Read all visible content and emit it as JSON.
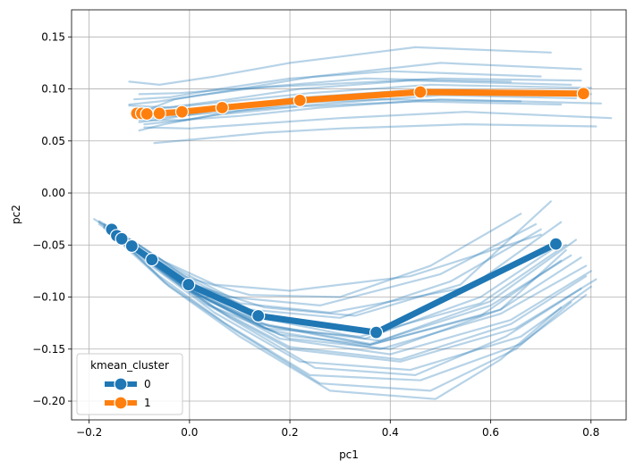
{
  "chart_data": {
    "type": "line",
    "title": "",
    "xlabel": "pc1",
    "ylabel": "pc2",
    "xlim": [
      -0.235,
      0.87
    ],
    "ylim": [
      -0.218,
      0.176
    ],
    "x_ticks": [
      -0.2,
      0.0,
      0.2,
      0.4,
      0.6,
      0.8
    ],
    "x_tick_labels": [
      "−0.2",
      "0.0",
      "0.2",
      "0.4",
      "0.6",
      "0.8"
    ],
    "y_ticks": [
      -0.2,
      -0.15,
      -0.1,
      -0.05,
      0.0,
      0.05,
      0.1,
      0.15
    ],
    "y_tick_labels": [
      "−0.20",
      "−0.15",
      "−0.10",
      "−0.05",
      "0.00",
      "0.05",
      "0.10",
      "0.15"
    ],
    "grid": true,
    "legend": {
      "title": "kmean_cluster",
      "placement": "lower-left",
      "entries": [
        {
          "label": "0",
          "color": "#1f77b4"
        },
        {
          "label": "1",
          "color": "#ff7f0e"
        }
      ]
    },
    "series": [
      {
        "name": "0",
        "role": "cluster mean",
        "color": "#1f77b4",
        "x": [
          -0.155,
          -0.145,
          -0.135,
          -0.115,
          -0.075,
          -0.002,
          0.137,
          0.372,
          0.73
        ],
        "y": [
          -0.035,
          -0.041,
          -0.044,
          -0.051,
          -0.064,
          -0.088,
          -0.118,
          -0.134,
          -0.049
        ]
      },
      {
        "name": "1",
        "role": "cluster mean",
        "color": "#ff7f0e",
        "x": [
          -0.105,
          -0.095,
          -0.085,
          -0.06,
          -0.015,
          0.065,
          0.22,
          0.46,
          0.785
        ],
        "y": [
          0.0765,
          0.0765,
          0.076,
          0.0765,
          0.078,
          0.082,
          0.089,
          0.097,
          0.0955
        ]
      }
    ],
    "background_traces": {
      "cluster_0": [
        {
          "x": [
            -0.19,
            -0.12,
            -0.03,
            0.12,
            0.35,
            0.58,
            0.73
          ],
          "y": [
            -0.025,
            -0.047,
            -0.078,
            -0.118,
            -0.14,
            -0.1,
            -0.052
          ]
        },
        {
          "x": [
            -0.18,
            -0.11,
            -0.02,
            0.14,
            0.36,
            0.6,
            0.76
          ],
          "y": [
            -0.03,
            -0.052,
            -0.086,
            -0.125,
            -0.145,
            -0.108,
            -0.06
          ]
        },
        {
          "x": [
            -0.17,
            -0.1,
            0.0,
            0.16,
            0.38,
            0.62,
            0.79
          ],
          "y": [
            -0.032,
            -0.056,
            -0.092,
            -0.132,
            -0.15,
            -0.116,
            -0.07
          ]
        },
        {
          "x": [
            -0.17,
            -0.09,
            0.02,
            0.18,
            0.4,
            0.64,
            0.8
          ],
          "y": [
            -0.034,
            -0.06,
            -0.098,
            -0.14,
            -0.155,
            -0.122,
            -0.075
          ]
        },
        {
          "x": [
            -0.16,
            -0.08,
            0.03,
            0.2,
            0.42,
            0.65,
            0.81
          ],
          "y": [
            -0.036,
            -0.066,
            -0.106,
            -0.15,
            -0.162,
            -0.13,
            -0.083
          ]
        },
        {
          "x": [
            -0.16,
            -0.07,
            0.05,
            0.22,
            0.44,
            0.66,
            0.8
          ],
          "y": [
            -0.038,
            -0.072,
            -0.115,
            -0.162,
            -0.17,
            -0.138,
            -0.09
          ]
        },
        {
          "x": [
            -0.15,
            -0.06,
            0.07,
            0.24,
            0.46,
            0.66,
            0.79
          ],
          "y": [
            -0.04,
            -0.08,
            -0.125,
            -0.175,
            -0.18,
            -0.145,
            -0.098
          ]
        },
        {
          "x": [
            -0.15,
            -0.05,
            0.09,
            0.26,
            0.48,
            0.65,
            0.76
          ],
          "y": [
            -0.042,
            -0.086,
            -0.132,
            -0.183,
            -0.19,
            -0.15,
            -0.105
          ]
        },
        {
          "x": [
            -0.14,
            -0.04,
            0.1,
            0.28,
            0.49,
            0.62,
            0.74
          ],
          "y": [
            -0.044,
            -0.09,
            -0.138,
            -0.19,
            -0.198,
            -0.16,
            -0.11
          ]
        },
        {
          "x": [
            -0.18,
            -0.1,
            -0.01,
            0.12,
            0.3,
            0.52,
            0.7
          ],
          "y": [
            -0.028,
            -0.05,
            -0.08,
            -0.112,
            -0.12,
            -0.085,
            -0.035
          ]
        },
        {
          "x": [
            -0.17,
            -0.11,
            -0.03,
            0.08,
            0.26,
            0.5,
            0.69
          ],
          "y": [
            -0.03,
            -0.048,
            -0.072,
            -0.1,
            -0.108,
            -0.078,
            -0.03
          ]
        },
        {
          "x": [
            -0.16,
            -0.09,
            0.0,
            0.12,
            0.3,
            0.48,
            0.66
          ],
          "y": [
            -0.033,
            -0.058,
            -0.082,
            -0.098,
            -0.1,
            -0.07,
            -0.02
          ]
        },
        {
          "x": [
            -0.15,
            -0.08,
            0.02,
            0.15,
            0.33,
            0.54,
            0.72
          ],
          "y": [
            -0.036,
            -0.062,
            -0.09,
            -0.11,
            -0.118,
            -0.088,
            -0.008
          ]
        },
        {
          "x": [
            -0.18,
            -0.12,
            -0.05,
            0.05,
            0.2,
            0.44,
            0.7
          ],
          "y": [
            -0.027,
            -0.044,
            -0.066,
            -0.088,
            -0.094,
            -0.08,
            -0.04
          ]
        },
        {
          "x": [
            -0.16,
            -0.1,
            -0.02,
            0.1,
            0.28,
            0.56,
            0.74
          ],
          "y": [
            -0.034,
            -0.054,
            -0.082,
            -0.106,
            -0.115,
            -0.09,
            -0.028
          ]
        },
        {
          "x": [
            -0.15,
            -0.08,
            0.01,
            0.16,
            0.38,
            0.6,
            0.77
          ],
          "y": [
            -0.037,
            -0.064,
            -0.096,
            -0.128,
            -0.142,
            -0.104,
            -0.045
          ]
        },
        {
          "x": [
            -0.14,
            -0.06,
            0.04,
            0.2,
            0.4,
            0.62,
            0.75
          ],
          "y": [
            -0.04,
            -0.072,
            -0.108,
            -0.14,
            -0.15,
            -0.112,
            -0.055
          ]
        },
        {
          "x": [
            -0.15,
            -0.07,
            0.04,
            0.18,
            0.36,
            0.58,
            0.74
          ],
          "y": [
            -0.04,
            -0.07,
            -0.104,
            -0.136,
            -0.146,
            -0.118,
            -0.065
          ]
        },
        {
          "x": [
            -0.16,
            -0.09,
            0.01,
            0.15,
            0.34,
            0.58,
            0.75
          ],
          "y": [
            -0.036,
            -0.062,
            -0.096,
            -0.13,
            -0.138,
            -0.106,
            -0.05
          ]
        },
        {
          "x": [
            -0.17,
            -0.1,
            -0.01,
            0.14,
            0.36,
            0.62,
            0.78
          ],
          "y": [
            -0.033,
            -0.058,
            -0.092,
            -0.126,
            -0.146,
            -0.112,
            -0.062
          ]
        },
        {
          "x": [
            -0.15,
            -0.07,
            0.05,
            0.2,
            0.42,
            0.64,
            0.79
          ],
          "y": [
            -0.038,
            -0.068,
            -0.11,
            -0.148,
            -0.16,
            -0.126,
            -0.08
          ]
        },
        {
          "x": [
            -0.14,
            -0.05,
            0.08,
            0.25,
            0.45,
            0.63,
            0.78
          ],
          "y": [
            -0.042,
            -0.078,
            -0.12,
            -0.168,
            -0.175,
            -0.138,
            -0.092
          ]
        }
      ],
      "cluster_1": [
        {
          "x": [
            -0.12,
            -0.06,
            0.05,
            0.2,
            0.45,
            0.72
          ],
          "y": [
            0.107,
            0.104,
            0.112,
            0.125,
            0.14,
            0.135
          ]
        },
        {
          "x": [
            -0.11,
            -0.03,
            0.1,
            0.25,
            0.5,
            0.78
          ],
          "y": [
            0.075,
            0.09,
            0.1,
            0.112,
            0.125,
            0.119
          ]
        },
        {
          "x": [
            -0.1,
            -0.05,
            0.05,
            0.22,
            0.45,
            0.74
          ],
          "y": [
            0.06,
            0.066,
            0.075,
            0.083,
            0.088,
            0.085
          ]
        },
        {
          "x": [
            -0.12,
            -0.04,
            0.08,
            0.24,
            0.48,
            0.8
          ],
          "y": [
            0.084,
            0.082,
            0.088,
            0.096,
            0.104,
            0.101
          ]
        },
        {
          "x": [
            -0.1,
            -0.02,
            0.1,
            0.26,
            0.5,
            0.82
          ],
          "y": [
            0.07,
            0.07,
            0.074,
            0.082,
            0.09,
            0.086
          ]
        },
        {
          "x": [
            -0.09,
            0.0,
            0.12,
            0.3,
            0.55,
            0.84
          ],
          "y": [
            0.063,
            0.062,
            0.066,
            0.072,
            0.078,
            0.072
          ]
        },
        {
          "x": [
            -0.11,
            -0.04,
            0.06,
            0.2,
            0.4,
            0.7
          ],
          "y": [
            0.09,
            0.092,
            0.1,
            0.11,
            0.117,
            0.112
          ]
        },
        {
          "x": [
            -0.1,
            -0.03,
            0.08,
            0.22,
            0.44,
            0.76
          ],
          "y": [
            0.079,
            0.083,
            0.09,
            0.1,
            0.108,
            0.104
          ]
        },
        {
          "x": [
            -0.07,
            0.02,
            0.15,
            0.3,
            0.55,
            0.81
          ],
          "y": [
            0.048,
            0.052,
            0.058,
            0.062,
            0.066,
            0.064
          ]
        },
        {
          "x": [
            -0.1,
            -0.02,
            0.09,
            0.25,
            0.5,
            0.78
          ],
          "y": [
            0.095,
            0.096,
            0.1,
            0.104,
            0.11,
            0.108
          ]
        },
        {
          "x": [
            -0.11,
            -0.05,
            0.04,
            0.18,
            0.38,
            0.66
          ],
          "y": [
            0.073,
            0.076,
            0.081,
            0.086,
            0.09,
            0.088
          ]
        },
        {
          "x": [
            -0.09,
            -0.01,
            0.1,
            0.28,
            0.52,
            0.8
          ],
          "y": [
            0.066,
            0.07,
            0.079,
            0.09,
            0.098,
            0.095
          ]
        },
        {
          "x": [
            -0.12,
            -0.06,
            0.02,
            0.15,
            0.35,
            0.64
          ],
          "y": [
            0.085,
            0.088,
            0.094,
            0.102,
            0.11,
            0.107
          ]
        },
        {
          "x": [
            -0.1,
            -0.04,
            0.06,
            0.2,
            0.42,
            0.7
          ],
          "y": [
            0.068,
            0.072,
            0.08,
            0.091,
            0.098,
            0.094
          ]
        },
        {
          "x": [
            -0.08,
            0.0,
            0.12,
            0.28,
            0.5,
            0.77
          ],
          "y": [
            0.072,
            0.075,
            0.08,
            0.086,
            0.094,
            0.091
          ]
        }
      ]
    }
  }
}
